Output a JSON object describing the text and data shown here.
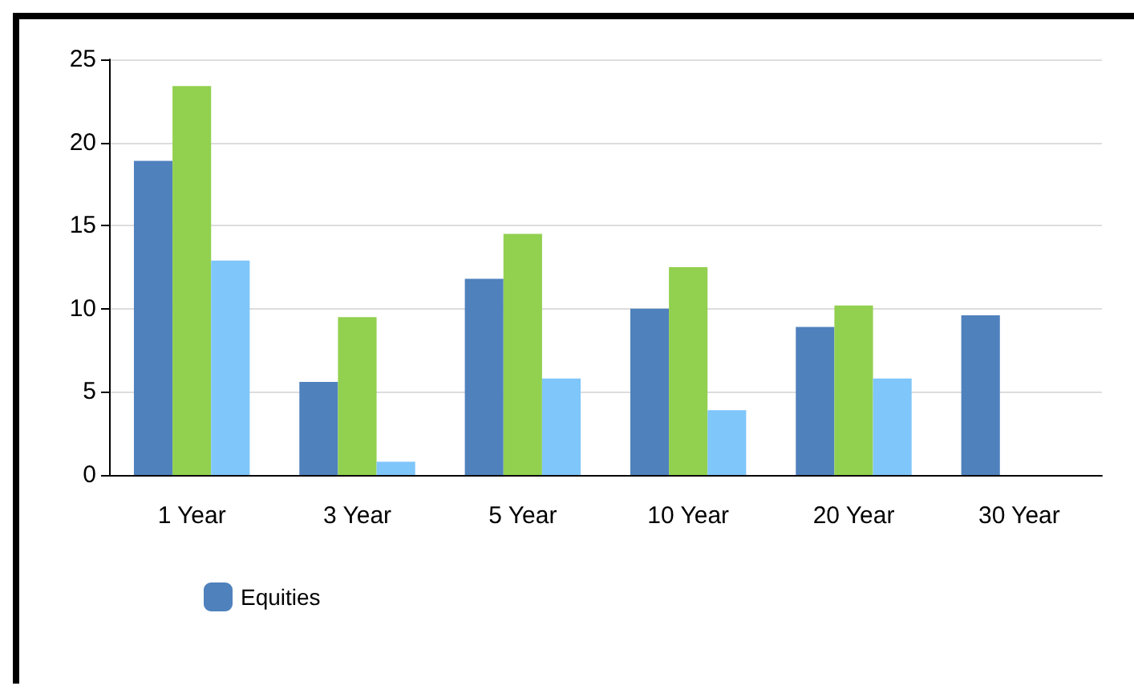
{
  "chart_data": {
    "type": "bar",
    "categories": [
      "1 Year",
      "3 Year",
      "5 Year",
      "10 Year",
      "20 Year",
      "30 Year"
    ],
    "series": [
      {
        "name": "Equities",
        "color": "#4f81bd",
        "values": [
          18.9,
          5.6,
          11.8,
          10.0,
          8.9,
          9.6
        ]
      },
      {
        "color": "#92d050",
        "values": [
          23.4,
          9.5,
          14.5,
          12.5,
          10.2,
          null
        ]
      },
      {
        "color": "#7fc6fb",
        "values": [
          12.9,
          0.8,
          5.8,
          3.9,
          5.8,
          null
        ]
      }
    ],
    "ylim": [
      0,
      25
    ],
    "yticks": [
      0,
      5,
      10,
      15,
      20,
      25
    ],
    "grid": "y",
    "legend": "bottom"
  }
}
